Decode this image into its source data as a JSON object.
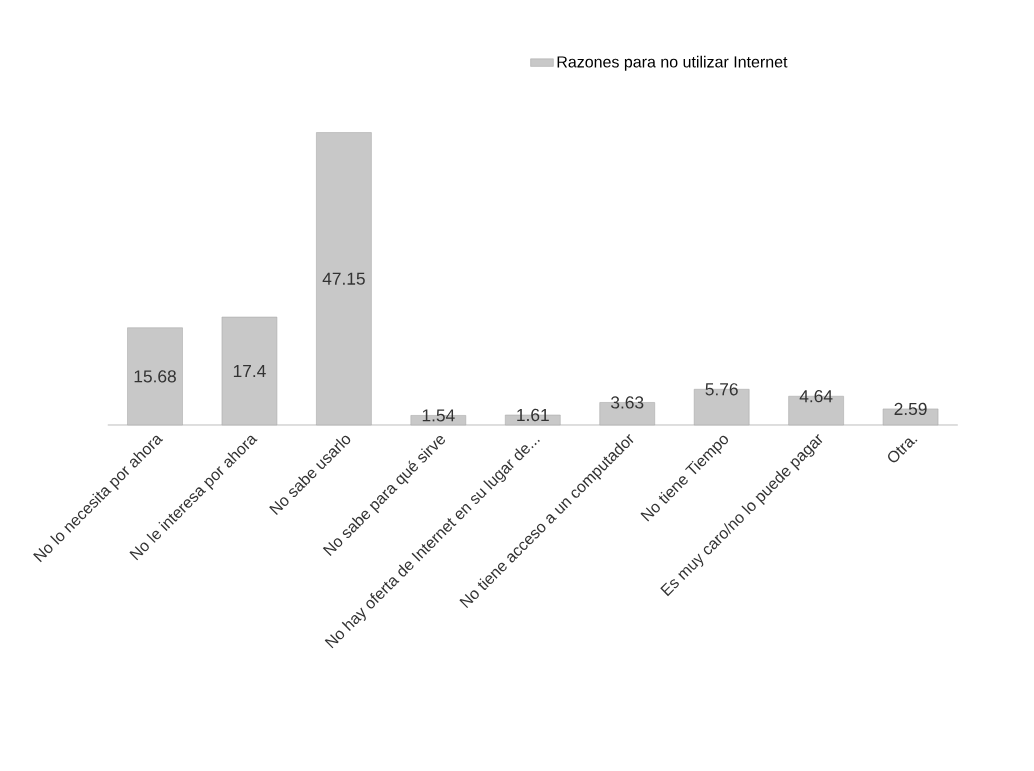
{
  "chart_data": {
    "type": "bar",
    "categories": [
      "No lo necesita por ahora",
      "No le interesa por ahora",
      "No sabe usarlo",
      "No sabe para qué sirve",
      "No hay oferta de Internet en su lugar de...",
      "No tiene acceso a un computador",
      "No tiene Tiempo",
      "Es muy caro/no lo puede pagar",
      "Otra."
    ],
    "series": [
      {
        "name": "Razones para no utilizar Internet",
        "color": "#c8c8c8",
        "values": [
          15.68,
          17.4,
          47.15,
          1.54,
          1.61,
          3.63,
          5.76,
          4.64,
          2.59
        ]
      }
    ],
    "data_labels": true,
    "legend": "top"
  }
}
